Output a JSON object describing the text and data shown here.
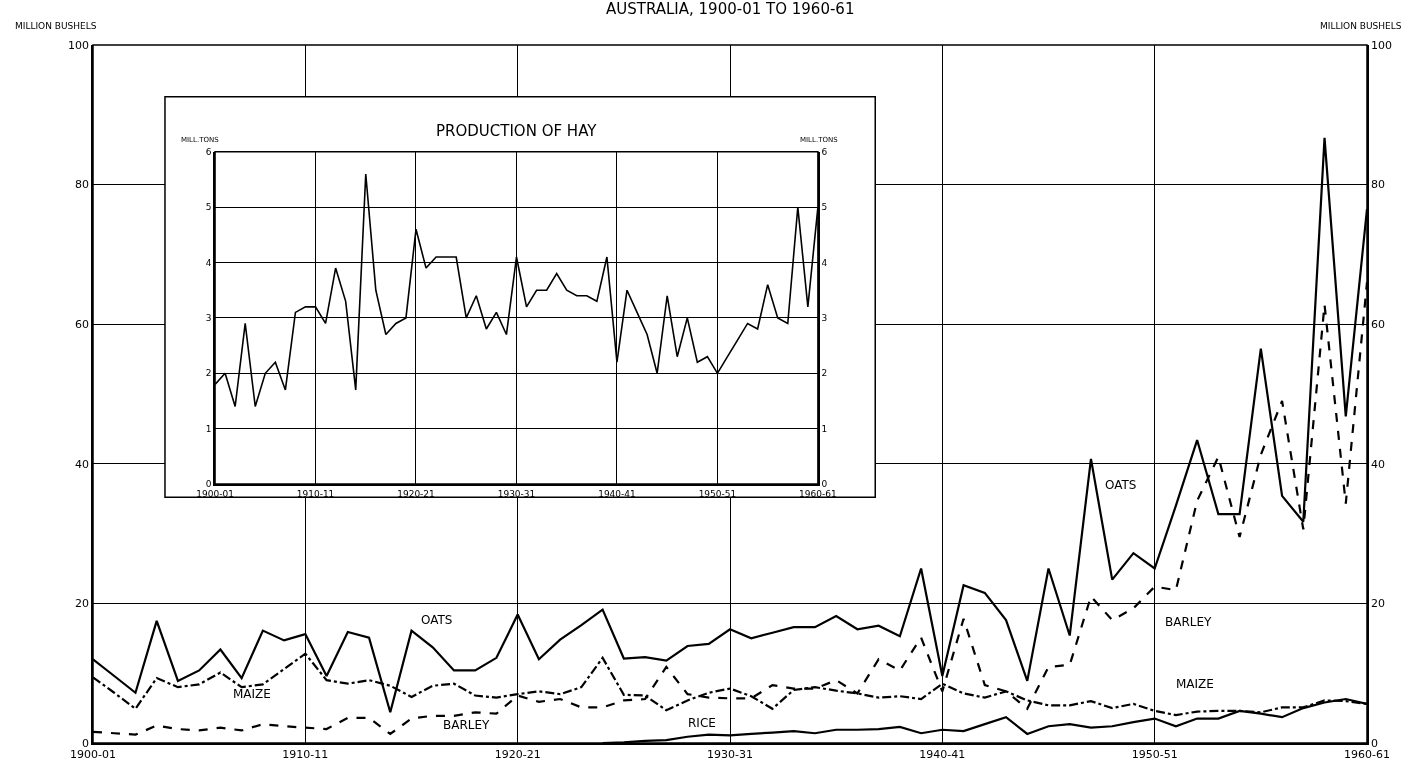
{
  "chart_data": [
    {
      "type": "line",
      "title": "AUSTRALIA, 1900-01 TO 1960-61",
      "ylabel": "MILLION BUSHELS",
      "y2label": "MILLION BUSHELS",
      "categories": [
        "1900-01",
        null,
        null,
        null,
        null,
        null,
        null,
        null,
        null,
        null,
        "1910-11",
        null,
        null,
        null,
        null,
        null,
        null,
        null,
        null,
        null,
        "1920-21",
        null,
        null,
        null,
        null,
        null,
        null,
        null,
        null,
        null,
        "1930-31",
        null,
        null,
        null,
        null,
        null,
        null,
        null,
        null,
        null,
        "1940-41",
        null,
        null,
        null,
        null,
        null,
        null,
        null,
        null,
        null,
        "1950-51",
        null,
        null,
        null,
        null,
        null,
        null,
        null,
        null,
        null,
        "1960-61"
      ],
      "ylim": [
        0,
        100
      ],
      "yticks": [
        0,
        20,
        40,
        60,
        80,
        100
      ],
      "y2lim": [
        0,
        100
      ],
      "y2ticks": [
        0,
        20,
        40,
        60,
        80,
        100
      ],
      "grid": true,
      "series": [
        {
          "color": "#000000",
          "line_style": "solid",
          "values": [
            12.0,
            9.6,
            7.2,
            17.5,
            8.9,
            10.4,
            13.4,
            9.3,
            16.1,
            14.7,
            15.6,
            9.6,
            15.9,
            15.1,
            4.4,
            16.1,
            13.7,
            10.4,
            10.4,
            12.2,
            18.4,
            12.0,
            14.8,
            16.9,
            19.1,
            12.1,
            12.3,
            11.8,
            13.9,
            14.2,
            16.3,
            15.0,
            15.8,
            16.6,
            16.6,
            18.2,
            16.3,
            16.8,
            15.3,
            25.0,
            9.6,
            22.6,
            21.5,
            17.6,
            8.9,
            25.0,
            15.4,
            40.7,
            23.4,
            27.2,
            25.0,
            34.0,
            43.4,
            32.8,
            32.8,
            56.5,
            35.4,
            31.7,
            86.7,
            46.8,
            76.5
          ]
        },
        {
          "color": "#000000",
          "line_style": "dashed",
          "values": [
            1.6,
            1.4,
            1.2,
            2.5,
            2.0,
            1.8,
            2.2,
            1.8,
            2.7,
            2.4,
            2.2,
            2.0,
            3.6,
            3.6,
            1.3,
            3.5,
            3.9,
            3.9,
            4.4,
            4.2,
            6.8,
            5.9,
            6.3,
            5.1,
            5.1,
            6.1,
            6.3,
            10.9,
            7.0,
            6.5,
            6.4,
            6.4,
            8.3,
            7.8,
            7.8,
            9.0,
            7.1,
            12.0,
            10.4,
            15.1,
            7.4,
            17.8,
            8.3,
            7.4,
            4.9,
            10.9,
            11.2,
            21.0,
            17.6,
            19.3,
            22.4,
            21.9,
            34.7,
            41.0,
            29.5,
            41.3,
            49.0,
            30.6,
            62.8,
            34.3,
            66.0
          ]
        },
        {
          "color": "#000000",
          "line_style": "dashdot",
          "values": [
            9.4,
            7.2,
            4.9,
            9.3,
            8.0,
            8.4,
            10.1,
            8.0,
            8.4,
            10.6,
            12.8,
            9.0,
            8.5,
            9.0,
            8.2,
            6.6,
            8.2,
            8.5,
            6.8,
            6.5,
            7.0,
            7.4,
            7.0,
            8.0,
            12.2,
            6.9,
            6.8,
            4.7,
            6.1,
            7.2,
            7.8,
            6.7,
            4.9,
            7.6,
            8.0,
            7.5,
            7.1,
            6.5,
            6.7,
            6.3,
            8.5,
            7.1,
            6.5,
            7.4,
            6.1,
            5.4,
            5.4,
            6.0,
            5.0,
            5.6,
            4.6,
            4.0,
            4.5,
            4.6,
            4.6,
            4.4,
            5.1,
            5.1,
            6.1,
            6.0,
            5.6
          ]
        },
        {
          "color": "#000000",
          "line_style": "solid",
          "values": [
            null,
            null,
            null,
            null,
            null,
            null,
            null,
            null,
            null,
            null,
            null,
            null,
            null,
            null,
            null,
            null,
            null,
            null,
            null,
            null,
            null,
            null,
            null,
            null,
            0.0,
            0.1,
            0.3,
            0.4,
            0.9,
            1.2,
            1.1,
            1.3,
            1.5,
            1.7,
            1.4,
            1.9,
            1.9,
            2.0,
            2.3,
            1.4,
            1.9,
            1.7,
            2.7,
            3.7,
            1.3,
            2.4,
            2.7,
            2.2,
            2.4,
            3.0,
            3.5,
            2.4,
            3.5,
            3.5,
            4.6,
            4.2,
            3.7,
            5.0,
            5.8,
            6.3,
            5.6
          ]
        }
      ],
      "annotations": [
        "OATS",
        "MAIZE",
        "BARLEY",
        "RICE",
        "OATS",
        "BARLEY",
        "MAIZE"
      ]
    },
    {
      "type": "line",
      "title": "PRODUCTION OF HAY",
      "ylabel": "MILL.TONS",
      "y2label": "MILL.TONS",
      "categories": [
        "1900-01",
        null,
        null,
        null,
        null,
        null,
        null,
        null,
        null,
        null,
        "1910-11",
        null,
        null,
        null,
        null,
        null,
        null,
        null,
        null,
        null,
        "1920-21",
        null,
        null,
        null,
        null,
        null,
        null,
        null,
        null,
        null,
        "1930-31",
        null,
        null,
        null,
        null,
        null,
        null,
        null,
        null,
        null,
        "1940-41",
        null,
        null,
        null,
        null,
        null,
        null,
        null,
        null,
        null,
        "1950-51",
        null,
        null,
        null,
        null,
        null,
        null,
        null,
        null,
        null,
        "1960-61"
      ],
      "ylim": [
        0,
        6
      ],
      "yticks": [
        0,
        1,
        2,
        3,
        4,
        5,
        6
      ],
      "y2lim": [
        0,
        6
      ],
      "y2ticks": [
        0,
        1,
        2,
        3,
        4,
        5,
        6
      ],
      "grid": true,
      "series": [
        {
          "color": "#000000",
          "line_style": "solid",
          "values": [
            1.8,
            2.0,
            1.4,
            2.9,
            1.4,
            2.0,
            2.2,
            1.7,
            3.1,
            3.2,
            3.2,
            2.9,
            3.9,
            3.3,
            1.7,
            5.6,
            3.5,
            2.7,
            2.9,
            3.0,
            4.6,
            3.9,
            4.1,
            4.1,
            4.1,
            3.0,
            3.4,
            2.8,
            3.1,
            2.7,
            4.1,
            3.2,
            3.5,
            3.5,
            3.8,
            3.5,
            3.4,
            3.4,
            3.3,
            4.1,
            2.2,
            3.5,
            3.1,
            2.7,
            2.0,
            3.4,
            2.3,
            3.0,
            2.2,
            2.3,
            2.0,
            2.3,
            2.6,
            2.9,
            2.8,
            3.6,
            3.0,
            2.9,
            5.0,
            3.2,
            5.0
          ]
        }
      ]
    }
  ]
}
